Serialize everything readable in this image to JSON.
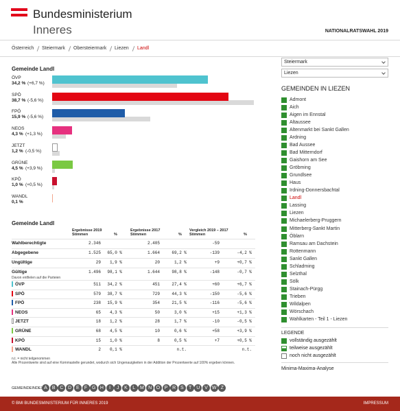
{
  "header": {
    "title_line1": "Bundesministerium",
    "title_line2": "Inneres",
    "election": "NATIONALRATSWAHL 2019"
  },
  "breadcrumb": [
    "Österreich",
    "Steiermark",
    "Obersteiermark",
    "Liezen",
    "Landl"
  ],
  "chart": {
    "title": "Gemeinde Landl",
    "parties": [
      {
        "name": "ÖVP",
        "color": "#4fc3cf",
        "share": 34.2,
        "share_label": "34,2 %",
        "change_label": "(+6,7 %)",
        "prev_share": 27.4
      },
      {
        "name": "SPÖ",
        "color": "#e30613",
        "share": 38.7,
        "share_label": "38,7 %",
        "change_label": "(-5,6 %)",
        "prev_share": 44.3
      },
      {
        "name": "FPÖ",
        "color": "#1f5ca8",
        "share": 15.9,
        "share_label": "15,9 %",
        "change_label": "(-5,6 %)",
        "prev_share": 21.5
      },
      {
        "name": "NEOS",
        "color": "#e6317f",
        "share": 4.3,
        "share_label": "4,3 %",
        "change_label": "(+1,3 %)",
        "prev_share": 3.0
      },
      {
        "name": "JETZT",
        "color": "#ffffff",
        "share": 1.2,
        "share_label": "1,2 %",
        "change_label": "(-0,5 %)",
        "prev_share": 1.7
      },
      {
        "name": "GRÜNE",
        "color": "#7ac943",
        "share": 4.5,
        "share_label": "4,5 %",
        "change_label": "(+3,9 %)",
        "prev_share": 0.6
      },
      {
        "name": "KPÖ",
        "color": "#c8102e",
        "share": 1.0,
        "share_label": "1,0 %",
        "change_label": "(+0,5 %)",
        "prev_share": 0.5
      },
      {
        "name": "WANDL",
        "color": "#f3a58c",
        "share": 0.1,
        "share_label": "0,1 %",
        "change_label": null,
        "prev_share": null
      }
    ]
  },
  "table": {
    "title": "Gemeinde Landl",
    "headers": [
      {
        "title": "Ergebnisse 2019",
        "sub": "Stimmen",
        "pct": "%"
      },
      {
        "title": "Ergebnisse 2017",
        "sub": "Stimmen",
        "pct": "%"
      },
      {
        "title": "Vergleich 2019 – 2017",
        "sub": "Stimmen",
        "pct": "%"
      }
    ],
    "summary_rows": [
      {
        "label": "Wahlberechtigte",
        "cells": [
          "2.346",
          null,
          "2.405",
          null,
          "-59",
          null
        ]
      },
      {
        "label": "Abgegebene",
        "cells": [
          "1.525",
          "65,0 %",
          "1.664",
          "69,2 %",
          "-139",
          "-4,2 %"
        ]
      },
      {
        "label": "Ungültige",
        "cells": [
          "29",
          "1,9 %",
          "20",
          "1,2 %",
          "+9",
          "+0,7 %"
        ]
      },
      {
        "label": "Gültige",
        "cells": [
          "1.496",
          "98,1 %",
          "1.644",
          "98,8 %",
          "-148",
          "-0,7 %"
        ]
      }
    ],
    "subheader": "Davon entfielen auf die Parteien",
    "party_rows": [
      {
        "label": "ÖVP",
        "color": "#4fc3cf",
        "cells": [
          "511",
          "34,2 %",
          "451",
          "27,4 %",
          "+60",
          "+6,7 %"
        ]
      },
      {
        "label": "SPÖ",
        "color": "#e30613",
        "cells": [
          "579",
          "38,7 %",
          "729",
          "44,3 %",
          "-150",
          "-5,6 %"
        ]
      },
      {
        "label": "FPÖ",
        "color": "#1f5ca8",
        "cells": [
          "238",
          "15,9 %",
          "354",
          "21,5 %",
          "-116",
          "-5,6 %"
        ]
      },
      {
        "label": "NEOS",
        "color": "#e6317f",
        "cells": [
          "65",
          "4,3 %",
          "50",
          "3,0 %",
          "+15",
          "+1,3 %"
        ]
      },
      {
        "label": "JETZT",
        "color": "#ffffff",
        "cells": [
          "18",
          "1,2 %",
          "28",
          "1,7 %",
          "-10",
          "-0,5 %"
        ]
      },
      {
        "label": "GRÜNE",
        "color": "#7ac943",
        "cells": [
          "68",
          "4,5 %",
          "10",
          "0,6 %",
          "+58",
          "+3,9 %"
        ]
      },
      {
        "label": "KPÖ",
        "color": "#c8102e",
        "cells": [
          "15",
          "1,0 %",
          "8",
          "0,5 %",
          "+7",
          "+0,5 %"
        ]
      },
      {
        "label": "WANDL",
        "color": "#f3a58c",
        "cells": [
          "2",
          "0,1 %",
          null,
          "n.t.",
          null,
          "n.t."
        ]
      }
    ],
    "notes": [
      "n.t. = nicht teilgenommen",
      "Alle Prozentwerte sind auf eine Kommastelle gerundet, wodurch sich Ungenauigkeiten in der Addition der Prozentwerte auf 100% ergeben können."
    ]
  },
  "sidebar": {
    "selects": [
      "Steiermark",
      "Liezen"
    ],
    "list_title": "GEMEINDEN IN LIEZEN",
    "municipalities": [
      "Admont",
      "Aich",
      "Aigen im Ennstal",
      "Altaussee",
      "Altenmarkt bei Sankt Gallen",
      "Ardning",
      "Bad Aussee",
      "Bad Mitterndorf",
      "Gaishorn am See",
      "Gröbming",
      "Grundlsee",
      "Haus",
      "Irdning-Donnersbachtal",
      "Landl",
      "Lassing",
      "Liezen",
      "Michaelerberg-Pruggern",
      "Mitterberg-Sankt Martin",
      "Öblarn",
      "Ramsau am Dachstein",
      "Rottenmann",
      "Sankt Gallen",
      "Schladming",
      "Selzthal",
      "Sölk",
      "Stainach-Pürgg",
      "Trieben",
      "Wildalpen",
      "Wörschach",
      "Wahlkarten - Teil 1 - Liezen"
    ],
    "active": "Landl",
    "legend_title": "LEGENDE",
    "legend": [
      "vollständig ausgezählt",
      "teilweise ausgezählt",
      "noch nicht ausgezählt"
    ],
    "analysis": "Minima-Maxima-Analyse"
  },
  "index": {
    "label": "GEMEINDEINDEX",
    "letters": [
      "A",
      "B",
      "C",
      "D",
      "E",
      "F",
      "G",
      "H",
      "I",
      "J",
      "K",
      "L",
      "M",
      "N",
      "O",
      "P",
      "R",
      "S",
      "T",
      "U",
      "V",
      "W",
      "Z"
    ]
  },
  "footer": {
    "copyright": "© BMI BUNDESMINISTERIUM FÜR INNERES 2019",
    "imprint": "IMPRESSUM"
  }
}
